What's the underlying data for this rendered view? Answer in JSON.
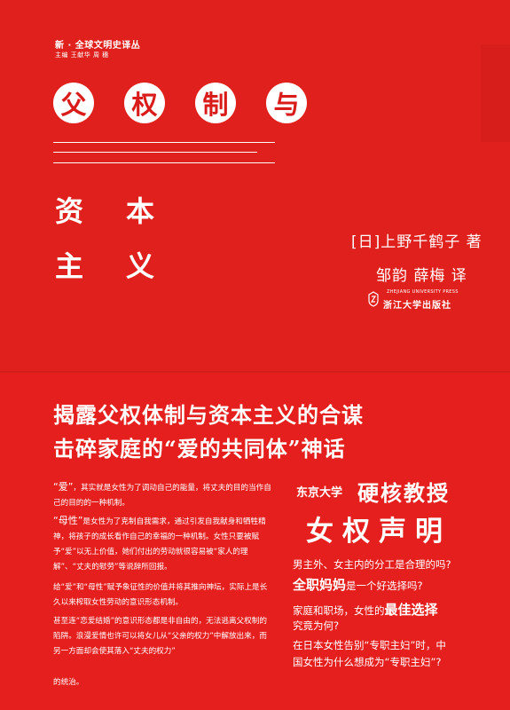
{
  "cover": {
    "series": "新 · 全球文明史译丛",
    "editors": "主编   王献华   周   穗",
    "title_row1": [
      "父",
      "权",
      "制",
      "与"
    ],
    "title_row2": [
      "资",
      "本"
    ],
    "title_row3": [
      "主",
      "义"
    ],
    "author": "[日]上野千鹤子  著",
    "translator": "邹韵   薛梅  译",
    "publisher_en": "ZHEJIANG UNIVERSITY PRESS",
    "publisher_cn": "浙江大学出版社"
  },
  "belly": {
    "headline1": "揭露父权体制与资本主义的合谋",
    "headline2": "击碎家庭的“爱的共同体”神话",
    "paragraphs": [
      {
        "hl": "“爱”",
        "text": "，其实就是女性为了调动自己的能量，将丈夫的目的当作自己的目的的一种机制。"
      },
      {
        "hl": "“母性”",
        "text": "是女性为了克制自我需求，通过引发自我献身和牺牲精神，将孩子的成长看作自己的幸福的一种机制。女性只要被赋予“爱”以无上价值，她们付出的劳动就很容易被“家人的理解”、“丈夫的慰劳”等说辞所回报。"
      },
      {
        "hl": "",
        "text": "给“爱”和“母性”赋予象征性的价值并将其推向神坛，实际上是长久以来榨取女性劳动的意识形态机制。"
      },
      {
        "hl": "",
        "text": "甚至连“恋爱结婚”的意识形态都是非自由的，无法逃离父权制的陷阱。浪漫爱情也许可以将女儿从“父亲的权力”中解放出来，而另一方面却会使其落入“丈夫的权力”"
      }
    ],
    "last_line": "的统治。",
    "tag_small": "东京大学",
    "tag_big": "硬核教授",
    "tag_big2": "女权声明",
    "questions": {
      "q1": "男主外、女主内的分工是合理的吗?",
      "q2_em": "全职妈妈",
      "q2_rest": "是一个好选择吗?",
      "q3_pre": "家庭和职场，女性的",
      "q3_em": "最佳选择",
      "q4": "究竟为何?",
      "q5": "在日本女性告别“专职主妇”时，中",
      "q6": "国女性为什么想成为“专职主妇”?"
    }
  },
  "colors": {
    "red": "#e41f1d",
    "white": "#ffffff"
  }
}
